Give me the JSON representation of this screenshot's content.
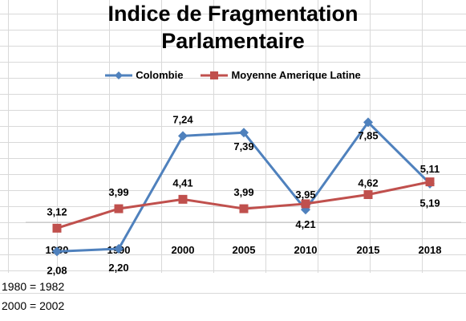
{
  "chart_data": {
    "type": "line",
    "title_lines": [
      "Indice de Fragmentation",
      "Parlamentaire"
    ],
    "categories": [
      "1980",
      "1990",
      "2000",
      "2005",
      "2010",
      "2015",
      "2018"
    ],
    "series": [
      {
        "name": "Colombie",
        "color": "#4f81bd",
        "marker": "diamond",
        "values": [
          2.08,
          2.2,
          7.24,
          7.39,
          3.95,
          7.85,
          5.11
        ],
        "labels": [
          "2,08",
          "2,20",
          "7,24",
          "7,39",
          "3,95",
          "7,85",
          "5,11"
        ]
      },
      {
        "name": "Moyenne Amerique Latine",
        "color": "#c0504d",
        "marker": "square",
        "values": [
          3.12,
          3.99,
          4.41,
          3.99,
          4.21,
          4.62,
          5.19
        ],
        "labels": [
          "3,12",
          "3,99",
          "4,41",
          "3,99",
          "4,21",
          "4,62",
          "5,19"
        ]
      }
    ],
    "xlabel": "",
    "ylabel": "",
    "ylim": [
      0,
      10
    ],
    "legend_position": "top",
    "gridlines": false
  },
  "notes": [
    "1980 = 1982",
    "2000 = 2002"
  ]
}
